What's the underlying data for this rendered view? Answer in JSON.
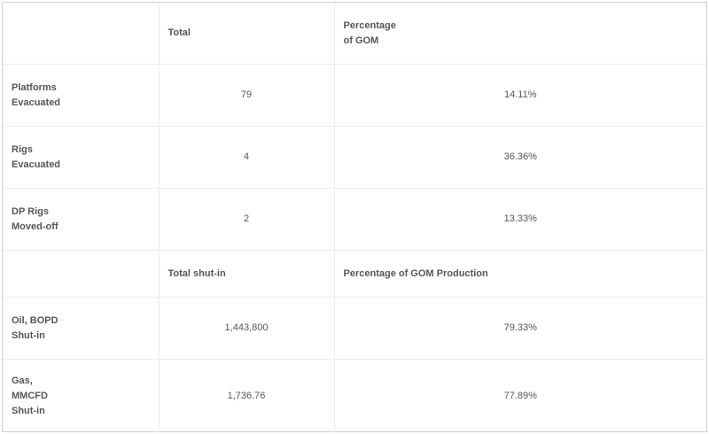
{
  "header1": {
    "col1": "",
    "col2": "Total",
    "col3_line1": "Percentage",
    "col3_line2": "of GOM"
  },
  "evacuation_rows": [
    {
      "label_line1": "Platforms",
      "label_line2": "Evacuated",
      "total": "79",
      "percentage": "14.11%"
    },
    {
      "label_line1": "Rigs",
      "label_line2": "Evacuated",
      "total": "4",
      "percentage": "36.36%"
    },
    {
      "label_line1": "DP Rigs",
      "label_line2": "Moved-off",
      "total": "2",
      "percentage": "13.33%"
    }
  ],
  "header2": {
    "col1": "",
    "col2": "Total shut-in",
    "col3": "Percentage of GOM Production"
  },
  "production_rows": [
    {
      "label_lines": [
        "Oil, BOPD",
        "Shut-in"
      ],
      "total": "1,443,800",
      "percentage": "79.33%"
    },
    {
      "label_lines": [
        "Gas,",
        "MMCFD",
        "Shut-in"
      ],
      "total": "1,736.76",
      "percentage": "77.89%"
    }
  ]
}
